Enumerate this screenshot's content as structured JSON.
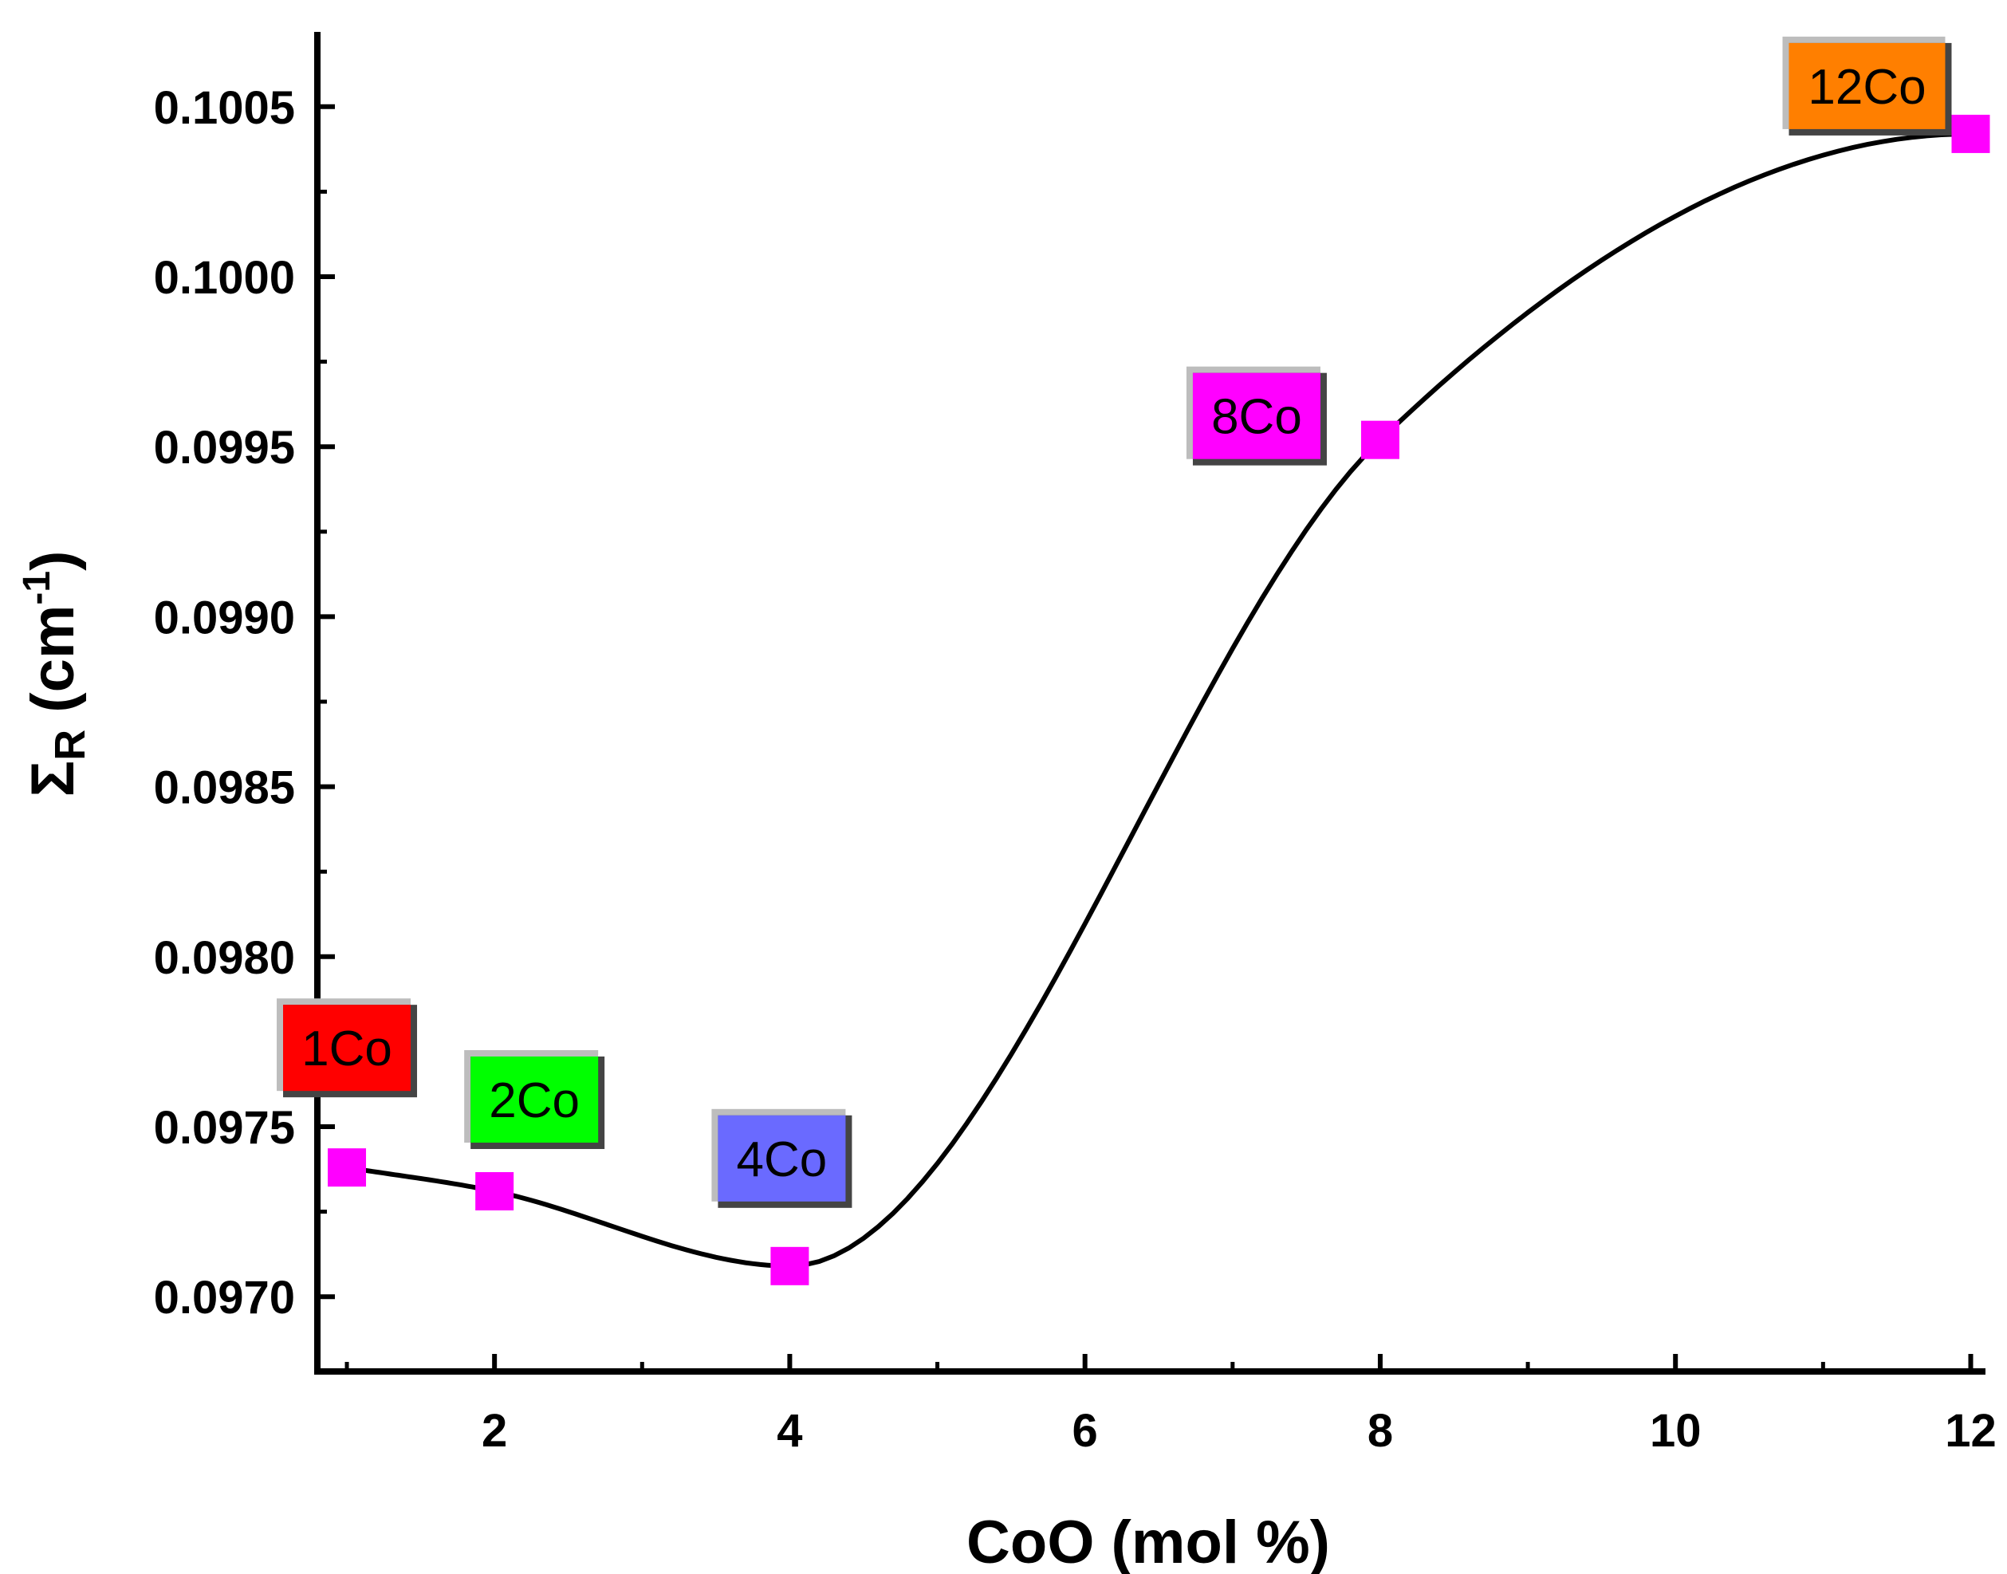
{
  "chart_data": {
    "type": "scatter",
    "title": "",
    "xlabel": "CoO (mol %)",
    "ylabel": {
      "main": "Σ",
      "subscript": "R",
      "unit_open": " (cm",
      "superscript": "-1",
      "unit_close": ")"
    },
    "xlim": [
      0.8,
      12.1
    ],
    "ylim": [
      0.09678,
      0.10072
    ],
    "x_ticks": [
      2,
      4,
      6,
      8,
      10,
      12
    ],
    "x_tick_labels": [
      "2",
      "4",
      "6",
      "8",
      "10",
      "12"
    ],
    "y_ticks": [
      0.097,
      0.0975,
      0.098,
      0.0985,
      0.099,
      0.0995,
      0.1,
      0.1005
    ],
    "y_tick_labels": [
      "0.0970",
      "0.0975",
      "0.0980",
      "0.0985",
      "0.0990",
      "0.0995",
      "0.1000",
      "0.1005"
    ],
    "grid": false,
    "series": [
      {
        "marker": "square",
        "marker_color": "#ff00ff",
        "line_color": "#000000",
        "fit": "smooth-curve",
        "x": [
          1,
          2,
          4,
          8,
          12
        ],
        "y": [
          0.09738,
          0.09731,
          0.09709,
          0.09952,
          0.10042
        ]
      }
    ],
    "annotations": [
      {
        "text": "1Co",
        "x": 1,
        "color": "#ff0000"
      },
      {
        "text": "2Co",
        "x": 2,
        "color": "#00ff00"
      },
      {
        "text": "4Co",
        "x": 4,
        "color": "#6a6aff"
      },
      {
        "text": "8Co",
        "x": 8,
        "color": "#ff00ff"
      },
      {
        "text": "12Co",
        "x": 12,
        "color": "#ff7f00"
      }
    ]
  }
}
